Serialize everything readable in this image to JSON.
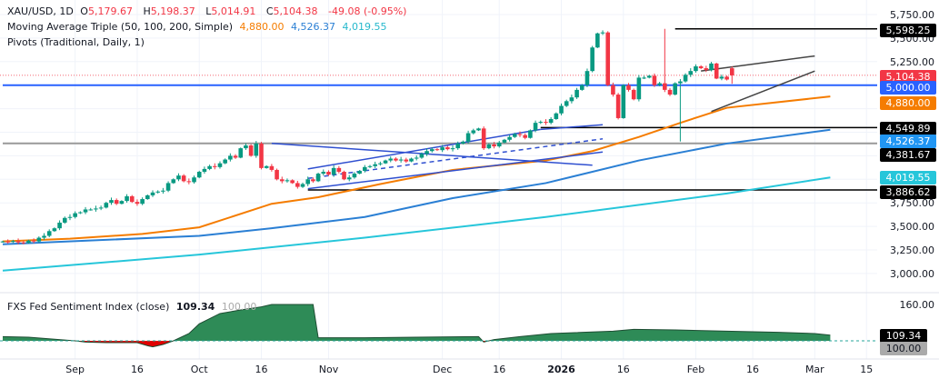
{
  "header": {
    "symbol": "XAU/USD, 1D",
    "open_label": "O",
    "open": "5,179.67",
    "high_label": "H",
    "high": "5,198.37",
    "low_label": "L",
    "low": "5,014.91",
    "close_label": "C",
    "close": "5,104.38",
    "change": "-49.08 (-0.95%)",
    "ma_title": "Moving Average Triple (50, 100, 200, Simple)",
    "ma50": "4,880.00",
    "ma100": "4,526.37",
    "ma200": "4,019.55",
    "pivots_title": "Pivots (Traditional, Daily, 1)"
  },
  "colors": {
    "up": "#089981",
    "down": "#f23645",
    "ma50": "#f57c00",
    "ma100": "#2a7fd4",
    "ma200": "#26c6da",
    "level_5000": "#2962ff",
    "trendlines": "#2f4fd0",
    "sentiment_above": "#2e8b57",
    "sentiment_below": "#e00000"
  },
  "chart_data": [
    {
      "type": "candlestick",
      "title": "XAU/USD, 1D",
      "ylim": [
        2850,
        5800
      ],
      "y_ticks": [
        "5,750.00",
        "5,500.00",
        "5,250.00",
        "3,750.00",
        "3,500.00",
        "3,250.00",
        "3,000.00"
      ],
      "y_tick_values": [
        5750,
        5500,
        5250,
        3750,
        3500,
        3250,
        3000
      ],
      "x_ticks": [
        {
          "label": "Sep",
          "i": 14
        },
        {
          "label": "16",
          "i": 26
        },
        {
          "label": "Oct",
          "i": 38
        },
        {
          "label": "16",
          "i": 50
        },
        {
          "label": "Nov",
          "i": 63
        },
        {
          "label": "Dec",
          "i": 85
        },
        {
          "label": "16",
          "i": 96
        },
        {
          "label": "2026",
          "i": 108
        },
        {
          "label": "16",
          "i": 120
        },
        {
          "label": "Feb",
          "i": 134
        },
        {
          "label": "16",
          "i": 145
        },
        {
          "label": "Mar",
          "i": 157
        },
        {
          "label": "15",
          "i": 167
        }
      ],
      "closes": [
        3340,
        3335,
        3345,
        3330,
        3325,
        3350,
        3340,
        3380,
        3400,
        3450,
        3480,
        3540,
        3590,
        3600,
        3640,
        3650,
        3680,
        3680,
        3690,
        3700,
        3750,
        3780,
        3740,
        3770,
        3820,
        3760,
        3740,
        3790,
        3830,
        3860,
        3870,
        3880,
        3960,
        4000,
        4040,
        3980,
        3970,
        4020,
        4080,
        4110,
        4140,
        4130,
        4170,
        4210,
        4250,
        4230,
        4330,
        4360,
        4250,
        4380,
        4120,
        4140,
        4100,
        4000,
        3980,
        3990,
        3960,
        3920,
        3950,
        4000,
        3980,
        4060,
        4080,
        4050,
        4120,
        4080,
        4000,
        4020,
        4060,
        4090,
        4130,
        4140,
        4160,
        4170,
        4200,
        4220,
        4200,
        4210,
        4190,
        4220,
        4230,
        4270,
        4300,
        4320,
        4310,
        4340,
        4320,
        4330,
        4380,
        4400,
        4490,
        4520,
        4540,
        4330,
        4370,
        4350,
        4390,
        4420,
        4450,
        4480,
        4470,
        4440,
        4520,
        4600,
        4610,
        4600,
        4640,
        4700,
        4780,
        4830,
        4870,
        4950,
        5000,
        5150,
        5400,
        5550,
        5560,
        5000,
        4900,
        4650,
        5000,
        4950,
        4850,
        5080,
        5080,
        5100,
        5000,
        5020,
        4950,
        4900,
        5020,
        5040,
        5110,
        5150,
        5200,
        5180,
        5160,
        5230,
        5070,
        5090,
        5060,
        5104.38
      ],
      "last_candle": {
        "open": 5179.67,
        "high": 5198.37,
        "low": 5014.91,
        "close": 5104.38
      },
      "series": [
        {
          "name": "MA 50",
          "points": [
            [
              0,
              3340
            ],
            [
              13,
              3370
            ],
            [
              27,
              3420
            ],
            [
              38,
              3490
            ],
            [
              52,
              3740
            ],
            [
              61,
              3810
            ],
            [
              73,
              3950
            ],
            [
              87,
              4100
            ],
            [
              105,
              4200
            ],
            [
              114,
              4300
            ],
            [
              123,
              4450
            ],
            [
              131,
              4600
            ],
            [
              140,
              4760
            ],
            [
              160,
              4880
            ]
          ]
        },
        {
          "name": "MA 100",
          "points": [
            [
              0,
              3310
            ],
            [
              38,
              3400
            ],
            [
              52,
              3480
            ],
            [
              70,
              3600
            ],
            [
              87,
              3800
            ],
            [
              105,
              3960
            ],
            [
              123,
              4200
            ],
            [
              140,
              4380
            ],
            [
              160,
              4526.37
            ]
          ]
        },
        {
          "name": "MA 200",
          "points": [
            [
              0,
              3030
            ],
            [
              38,
              3200
            ],
            [
              70,
              3380
            ],
            [
              105,
              3600
            ],
            [
              140,
              3850
            ],
            [
              160,
              4019.55
            ]
          ]
        }
      ],
      "levels": [
        {
          "value": "5,598.25",
          "price": 5598.25,
          "from_i": 130,
          "color": "#000000"
        },
        {
          "value": "5,000.00",
          "price": 5000,
          "from_i": 0,
          "color": "#2962ff"
        },
        {
          "value": "4,549.89",
          "price": 4549.89,
          "from_i": 104,
          "color": "#000000"
        },
        {
          "value": "4,381.67",
          "price": 4381.67,
          "from_i": 0,
          "color": "#999999"
        },
        {
          "value": "3,886.62",
          "price": 3886.62,
          "from_i": 59,
          "color": "#000000"
        }
      ],
      "price_tags": [
        {
          "value": "5,598.25",
          "price": 5598.25,
          "color": "#000000"
        },
        {
          "value": "5,104.38",
          "price": 5104.38,
          "color": "#f23645"
        },
        {
          "value": "5,000.00",
          "price": 5000,
          "color": "#2962ff"
        },
        {
          "value": "4,880.00",
          "price": 4880,
          "color": "#f57c00"
        },
        {
          "value": "4,549.89",
          "price": 4549.89,
          "color": "#000000"
        },
        {
          "value": "4,526.37",
          "price": 4526.37,
          "color": "#2196f3"
        },
        {
          "value": "4,381.67",
          "price": 4381.67,
          "color": "#000000"
        },
        {
          "value": "4,019.55",
          "price": 4019.55,
          "color": "#26c6da"
        },
        {
          "value": "3,886.62",
          "price": 3886.62,
          "color": "#000000"
        }
      ],
      "trendlines": [
        {
          "from": [
            52,
            4381.67
          ],
          "to": [
            114,
            4150
          ],
          "color": "#2f4fd0"
        },
        {
          "from": [
            59,
            4110
          ],
          "to": [
            104,
            4530
          ],
          "color": "#2f4fd0"
        },
        {
          "from": [
            104,
            4530
          ],
          "to": [
            116,
            4580
          ],
          "color": "#2f4fd0"
        },
        {
          "from": [
            59,
            3900
          ],
          "to": [
            116,
            4290
          ],
          "color": "#2f4fd0"
        },
        {
          "from": [
            59,
            4010
          ],
          "to": [
            116,
            4430
          ],
          "color": "#2f4fd0",
          "dashed": true
        },
        {
          "from": [
            135,
            5150
          ],
          "to": [
            157,
            5310
          ],
          "color": "#444444"
        },
        {
          "from": [
            137,
            4720
          ],
          "to": [
            157,
            5150
          ],
          "color": "#444444"
        }
      ]
    },
    {
      "type": "area",
      "title": "FXS Fed Sentiment Index (close)",
      "value": "109.34",
      "baseline": "100.00",
      "baseline_value": 100,
      "ylim": [
        95,
        165
      ],
      "y_ticks": [
        "160.00"
      ],
      "y_tick_values": [
        160
      ],
      "points": [
        [
          0,
          107
        ],
        [
          5,
          106
        ],
        [
          14,
          100
        ],
        [
          16,
          98
        ],
        [
          20,
          97
        ],
        [
          26,
          97
        ],
        [
          28,
          92
        ],
        [
          29,
          90
        ],
        [
          31,
          94
        ],
        [
          33,
          100
        ],
        [
          36,
          112
        ],
        [
          38,
          128
        ],
        [
          42,
          145
        ],
        [
          46,
          151
        ],
        [
          50,
          156
        ],
        [
          52,
          160
        ],
        [
          60,
          160
        ],
        [
          61,
          105
        ],
        [
          70,
          105
        ],
        [
          80,
          106
        ],
        [
          92,
          107
        ],
        [
          93,
          98
        ],
        [
          95,
          102
        ],
        [
          100,
          107
        ],
        [
          106,
          112
        ],
        [
          118,
          116
        ],
        [
          122,
          119
        ],
        [
          130,
          118
        ],
        [
          140,
          116
        ],
        [
          150,
          114
        ],
        [
          157,
          112
        ],
        [
          160,
          109.34
        ]
      ]
    }
  ]
}
